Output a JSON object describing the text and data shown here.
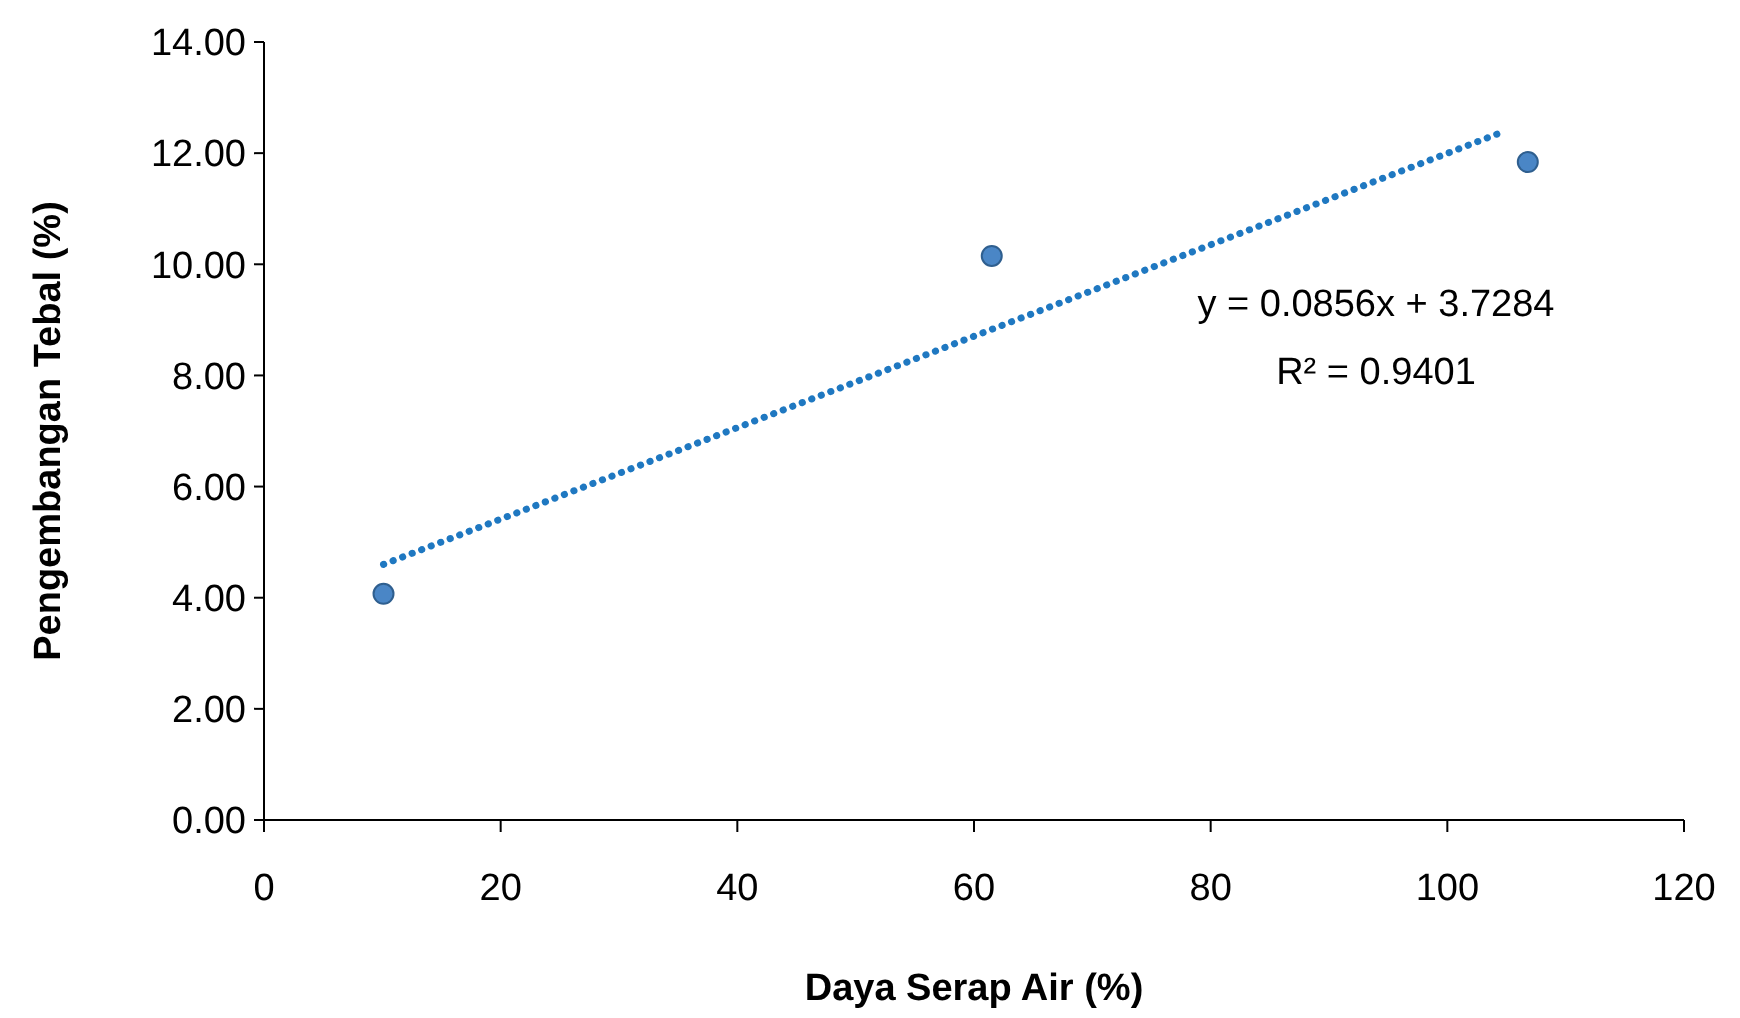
{
  "chart_data": {
    "type": "scatter",
    "xlabel": "Daya Serap Air (%)",
    "ylabel": "Pengembangan Tebal (%)",
    "xlim": [
      0,
      120
    ],
    "xticks": [
      0,
      20,
      40,
      60,
      80,
      100,
      120
    ],
    "ylim": [
      0,
      14
    ],
    "yticks": [
      {
        "value": 0,
        "label": "0.00"
      },
      {
        "value": 2,
        "label": "2.00"
      },
      {
        "value": 4,
        "label": "4.00"
      },
      {
        "value": 6,
        "label": "6.00"
      },
      {
        "value": 8,
        "label": "8.00"
      },
      {
        "value": 10,
        "label": "10.00"
      },
      {
        "value": 12,
        "label": "12.00"
      },
      {
        "value": 14,
        "label": "14.00"
      }
    ],
    "grid": false,
    "series": [
      {
        "type": "scatter",
        "color": "#4a86c6",
        "marker": "circle",
        "x": [
          10.1,
          61.5,
          106.8
        ],
        "values": [
          4.07,
          10.15,
          11.84
        ]
      },
      {
        "type": "line",
        "color": "#1f78c1",
        "marker": "none",
        "line_style": "dotted",
        "x": [
          10.1,
          104.9
        ],
        "values": [
          4.6,
          12.4
        ]
      }
    ],
    "annotations": [
      "y = 0.0856x + 3.7284",
      "R² = 0.9401"
    ]
  }
}
